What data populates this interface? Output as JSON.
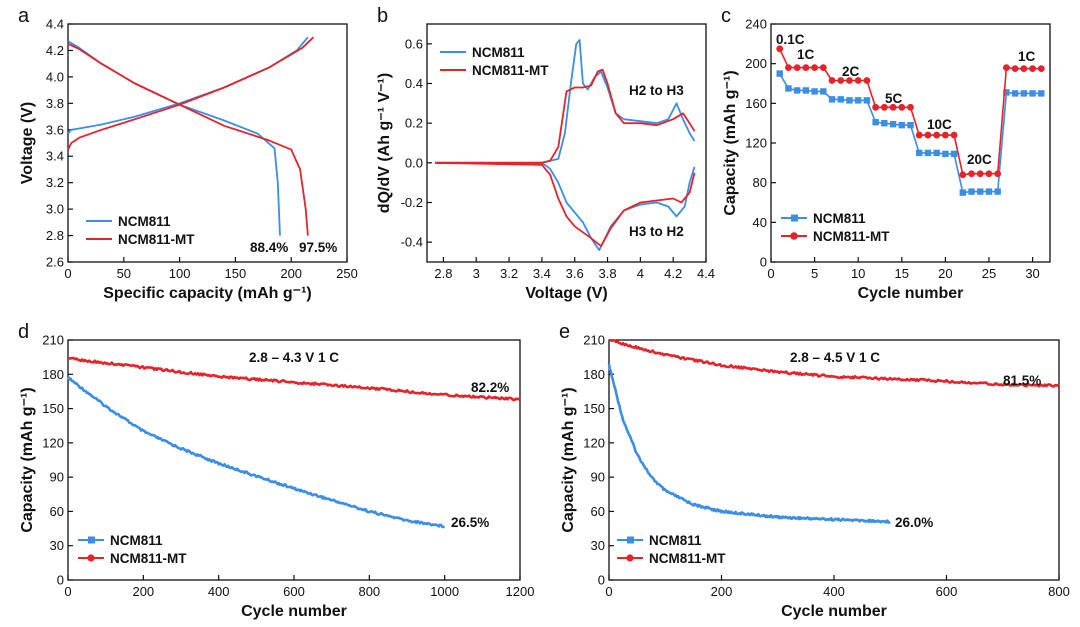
{
  "colors": {
    "ncm811": "#3a8ee6",
    "ncm811_mt": "#e4232b"
  },
  "chart_data": [
    {
      "panel": "a",
      "type": "line",
      "xlabel": "Specific capacity (mAh g⁻¹)",
      "ylabel": "Voltage (V)",
      "xlim": [
        0,
        250
      ],
      "ylim": [
        2.6,
        4.4
      ],
      "xticks": [
        0,
        50,
        100,
        150,
        200,
        250
      ],
      "yticks": [
        2.6,
        2.8,
        3.0,
        3.2,
        3.4,
        3.6,
        3.8,
        4.0,
        4.2,
        4.4
      ],
      "legend": [
        "NCM811",
        "NCM811-MT"
      ],
      "series": [
        {
          "name": "NCM811 charge",
          "x": [
            0,
            3,
            10,
            30,
            60,
            100,
            140,
            180,
            205,
            215
          ],
          "y": [
            3.57,
            3.6,
            3.61,
            3.64,
            3.7,
            3.8,
            3.92,
            4.07,
            4.2,
            4.3
          ]
        },
        {
          "name": "NCM811 discharge",
          "x": [
            0,
            10,
            30,
            60,
            100,
            140,
            170,
            185,
            188,
            190
          ],
          "y": [
            4.27,
            4.22,
            4.1,
            3.95,
            3.79,
            3.67,
            3.57,
            3.46,
            3.2,
            2.8
          ]
        },
        {
          "name": "NCM811-MT charge",
          "x": [
            0,
            3,
            10,
            30,
            60,
            100,
            140,
            180,
            210,
            220
          ],
          "y": [
            3.45,
            3.5,
            3.54,
            3.6,
            3.68,
            3.79,
            3.92,
            4.07,
            4.22,
            4.3
          ]
        },
        {
          "name": "NCM811-MT discharge",
          "x": [
            0,
            10,
            30,
            60,
            100,
            140,
            180,
            200,
            208,
            213,
            215
          ],
          "y": [
            4.25,
            4.21,
            4.1,
            3.95,
            3.79,
            3.63,
            3.52,
            3.45,
            3.3,
            3.0,
            2.8
          ]
        }
      ],
      "annotations": [
        "88.4%",
        "97.5%"
      ]
    },
    {
      "panel": "b",
      "type": "line",
      "xlabel": "Voltage (V)",
      "ylabel": "dQ/dV (Ah g⁻¹ V⁻¹)",
      "xlim": [
        2.7,
        4.4
      ],
      "ylim": [
        -0.5,
        0.7
      ],
      "xticks": [
        2.8,
        3.0,
        3.2,
        3.4,
        3.6,
        3.8,
        4.0,
        4.2,
        4.4
      ],
      "yticks": [
        -0.4,
        -0.2,
        0.0,
        0.2,
        0.4,
        0.6
      ],
      "legend": [
        "NCM811",
        "NCM811-MT"
      ],
      "series": [
        {
          "name": "NCM811 charge",
          "x": [
            2.75,
            3.4,
            3.5,
            3.54,
            3.58,
            3.61,
            3.63,
            3.65,
            3.68,
            3.72,
            3.76,
            3.8,
            3.85,
            3.9,
            4.0,
            4.1,
            4.17,
            4.22,
            4.26,
            4.3,
            4.33
          ],
          "y": [
            0.0,
            0.0,
            0.02,
            0.15,
            0.42,
            0.6,
            0.62,
            0.4,
            0.37,
            0.43,
            0.46,
            0.38,
            0.25,
            0.22,
            0.21,
            0.2,
            0.22,
            0.3,
            0.22,
            0.15,
            0.11
          ]
        },
        {
          "name": "NCM811 discharge",
          "x": [
            4.33,
            4.3,
            4.27,
            4.22,
            4.17,
            4.1,
            4.0,
            3.9,
            3.82,
            3.75,
            3.7,
            3.65,
            3.6,
            3.55,
            3.5,
            3.45,
            3.4,
            2.75
          ],
          "y": [
            -0.02,
            -0.1,
            -0.22,
            -0.27,
            -0.22,
            -0.2,
            -0.21,
            -0.24,
            -0.32,
            -0.44,
            -0.38,
            -0.3,
            -0.25,
            -0.2,
            -0.1,
            -0.03,
            0.0,
            0.0
          ]
        },
        {
          "name": "NCM811-MT charge",
          "x": [
            2.75,
            3.4,
            3.45,
            3.5,
            3.55,
            3.6,
            3.65,
            3.7,
            3.74,
            3.77,
            3.8,
            3.85,
            3.9,
            4.0,
            4.1,
            4.2,
            4.26,
            4.3,
            4.33
          ],
          "y": [
            0.0,
            0.0,
            0.01,
            0.08,
            0.36,
            0.38,
            0.38,
            0.39,
            0.46,
            0.47,
            0.4,
            0.25,
            0.2,
            0.2,
            0.19,
            0.22,
            0.25,
            0.2,
            0.16
          ]
        },
        {
          "name": "NCM811-MT discharge",
          "x": [
            4.33,
            4.3,
            4.25,
            4.2,
            4.1,
            4.0,
            3.9,
            3.82,
            3.76,
            3.7,
            3.65,
            3.6,
            3.55,
            3.5,
            3.45,
            3.4,
            2.75
          ],
          "y": [
            -0.05,
            -0.15,
            -0.2,
            -0.18,
            -0.19,
            -0.2,
            -0.24,
            -0.33,
            -0.42,
            -0.38,
            -0.35,
            -0.32,
            -0.27,
            -0.18,
            -0.06,
            -0.01,
            0.0
          ]
        }
      ],
      "annotations": [
        "H2 to H3",
        "H3 to H2"
      ]
    },
    {
      "panel": "c",
      "type": "line",
      "xlabel": "Cycle number",
      "ylabel": "Capacity (mAh g⁻¹)",
      "xlim": [
        0,
        32
      ],
      "ylim": [
        0,
        240
      ],
      "xticks": [
        0,
        5,
        10,
        15,
        20,
        25,
        30
      ],
      "yticks": [
        0,
        40,
        80,
        120,
        160,
        200,
        240
      ],
      "legend": [
        "NCM811",
        "NCM811-MT"
      ],
      "series": [
        {
          "name": "NCM811",
          "x": [
            1,
            2,
            3,
            4,
            5,
            6,
            7,
            8,
            9,
            10,
            11,
            12,
            13,
            14,
            15,
            16,
            17,
            18,
            19,
            20,
            21,
            22,
            23,
            24,
            25,
            26,
            27,
            28,
            29,
            30,
            31
          ],
          "y": [
            190,
            175,
            173,
            173,
            172,
            172,
            164,
            164,
            163,
            163,
            163,
            141,
            140,
            139,
            138,
            138,
            110,
            110,
            110,
            109,
            109,
            70,
            71,
            71,
            71,
            71,
            171,
            170,
            170,
            170,
            170
          ]
        },
        {
          "name": "NCM811-MT",
          "x": [
            1,
            2,
            3,
            4,
            5,
            6,
            7,
            8,
            9,
            10,
            11,
            12,
            13,
            14,
            15,
            16,
            17,
            18,
            19,
            20,
            21,
            22,
            23,
            24,
            25,
            26,
            27,
            28,
            29,
            30,
            31
          ],
          "y": [
            215,
            196,
            196,
            196,
            196,
            196,
            183,
            183,
            183,
            183,
            183,
            156,
            156,
            156,
            156,
            156,
            128,
            128,
            128,
            128,
            128,
            88,
            89,
            89,
            89,
            89,
            196,
            195,
            195,
            195,
            195
          ]
        }
      ],
      "rate_labels": [
        "0.1C",
        "1C",
        "2C",
        "5C",
        "10C",
        "20C",
        "1C"
      ]
    },
    {
      "panel": "d",
      "type": "line",
      "title": "2.8 – 4.3 V  1 C",
      "xlabel": "Cycle number",
      "ylabel": "Capacity (mAh g⁻¹)",
      "xlim": [
        0,
        1200
      ],
      "ylim": [
        0,
        210
      ],
      "xticks": [
        0,
        200,
        400,
        600,
        800,
        1000,
        1200
      ],
      "yticks": [
        0,
        30,
        60,
        90,
        120,
        150,
        180,
        210
      ],
      "legend": [
        "NCM811",
        "NCM811-MT"
      ],
      "series": [
        {
          "name": "NCM811",
          "x": [
            0,
            100,
            200,
            300,
            400,
            500,
            600,
            700,
            800,
            900,
            1000
          ],
          "y": [
            177,
            152,
            130,
            115,
            102,
            91,
            80,
            70,
            60,
            52,
            47
          ]
        },
        {
          "name": "NCM811-MT",
          "x": [
            0,
            200,
            400,
            600,
            800,
            1000,
            1200
          ],
          "y": [
            194,
            186,
            178,
            173,
            168,
            162,
            158
          ]
        }
      ],
      "annotations": [
        "82.2%",
        "26.5%"
      ]
    },
    {
      "panel": "e",
      "type": "line",
      "title": "2.8 – 4.5 V  1 C",
      "xlabel": "Cycle number",
      "ylabel": "Capacity (mAh g⁻¹)",
      "xlim": [
        0,
        800
      ],
      "ylim": [
        0,
        210
      ],
      "xticks": [
        0,
        200,
        400,
        600,
        800
      ],
      "yticks": [
        0,
        30,
        60,
        90,
        120,
        150,
        180,
        210
      ],
      "legend": [
        "NCM811",
        "NCM811-MT"
      ],
      "series": [
        {
          "name": "NCM811",
          "x": [
            0,
            25,
            50,
            75,
            100,
            150,
            200,
            300,
            400,
            500
          ],
          "y": [
            188,
            140,
            110,
            90,
            78,
            66,
            60,
            55,
            53,
            51
          ]
        },
        {
          "name": "NCM811-MT",
          "x": [
            0,
            100,
            200,
            300,
            400,
            500,
            600,
            700,
            800
          ],
          "y": [
            210,
            197,
            188,
            182,
            178,
            176,
            174,
            171,
            170
          ]
        }
      ],
      "annotations": [
        "81.5%",
        "26.0%"
      ]
    }
  ]
}
